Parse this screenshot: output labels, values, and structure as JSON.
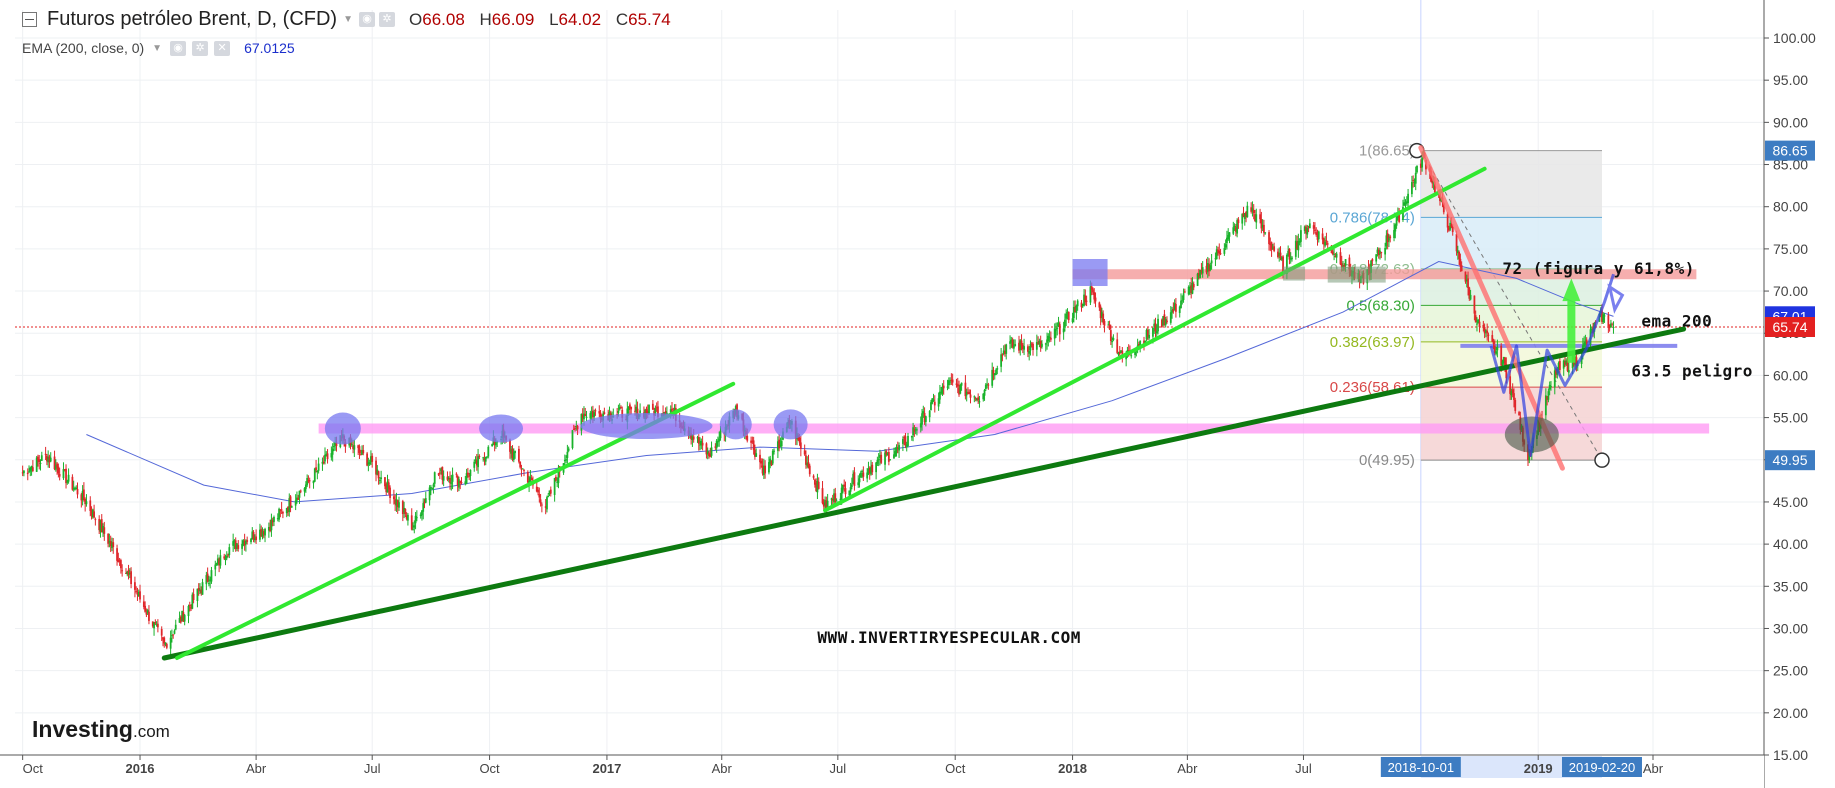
{
  "header": {
    "title": "Futuros petróleo Brent, D, (CFD)",
    "ohlc": [
      {
        "label": "O",
        "value": "66.08"
      },
      {
        "label": "H",
        "value": "66.09"
      },
      {
        "label": "L",
        "value": "64.02"
      },
      {
        "label": "C",
        "value": "65.74"
      }
    ],
    "indicator": "EMA (200, close, 0)",
    "indicator_value": "67.0125"
  },
  "colors": {
    "up_candle": "#19b22b",
    "down_candle": "#e0262a",
    "ema_line": "#5468d8",
    "trend_light": "#30e830",
    "trend_dark": "#0d7a10",
    "support_band": "#ff9cf5",
    "resistance_band": "#f59a9a",
    "current_price_tag": "#e32020",
    "ema_tag": "#1f33e0",
    "fib_tag": "#3d7cc2"
  },
  "chart_data": {
    "type": "candlestick",
    "title": "Futuros petróleo Brent, D, (CFD)",
    "y_axis": {
      "range": [
        15,
        102
      ],
      "ticks": [
        "100.00",
        "95.00",
        "90.00",
        "85.00",
        "80.00",
        "75.00",
        "70.00",
        "65.00",
        "60.00",
        "55.00",
        "50.00",
        "45.00",
        "40.00",
        "35.00",
        "30.00",
        "25.00",
        "20.00",
        "15.00"
      ]
    },
    "x_axis": {
      "range": [
        "2015-10-01",
        "2019-05-15"
      ],
      "ticks": [
        {
          "date": "2015-10-01",
          "label": "Oct"
        },
        {
          "date": "2016-01-01",
          "label": "2016",
          "bold": true
        },
        {
          "date": "2016-04-01",
          "label": "Abr"
        },
        {
          "date": "2016-07-01",
          "label": "Jul"
        },
        {
          "date": "2016-10-01",
          "label": "Oct"
        },
        {
          "date": "2017-01-01",
          "label": "2017",
          "bold": true
        },
        {
          "date": "2017-04-01",
          "label": "Abr"
        },
        {
          "date": "2017-07-01",
          "label": "Jul"
        },
        {
          "date": "2017-10-01",
          "label": "Oct"
        },
        {
          "date": "2018-01-01",
          "label": "2018",
          "bold": true
        },
        {
          "date": "2018-04-01",
          "label": "Abr"
        },
        {
          "date": "2018-07-01",
          "label": "Jul"
        },
        {
          "date": "2019-01-01",
          "label": "2019",
          "bold": true
        },
        {
          "date": "2019-04-01",
          "label": "Abr"
        }
      ],
      "highlight_range": [
        "2018-10-01",
        "2019-02-20"
      ],
      "highlight_labels": [
        {
          "date": "2018-10-01",
          "label": "2018-10-01"
        },
        {
          "date": "2019-02-20",
          "label": "2019-02-20"
        }
      ]
    },
    "price_key_points": [
      {
        "date": "2015-10-01",
        "close": 48.5
      },
      {
        "date": "2015-10-20",
        "close": 50.5
      },
      {
        "date": "2015-11-20",
        "close": 45.0
      },
      {
        "date": "2015-12-20",
        "close": 37.0
      },
      {
        "date": "2016-01-20",
        "close": 28.0
      },
      {
        "date": "2016-02-10",
        "close": 33.0
      },
      {
        "date": "2016-03-10",
        "close": 39.5
      },
      {
        "date": "2016-04-10",
        "close": 42.0
      },
      {
        "date": "2016-05-10",
        "close": 47.0
      },
      {
        "date": "2016-06-08",
        "close": 52.5
      },
      {
        "date": "2016-07-01",
        "close": 49.5
      },
      {
        "date": "2016-08-02",
        "close": 42.0
      },
      {
        "date": "2016-08-20",
        "close": 48.5
      },
      {
        "date": "2016-09-10",
        "close": 47.5
      },
      {
        "date": "2016-10-10",
        "close": 53.0
      },
      {
        "date": "2016-11-14",
        "close": 44.5
      },
      {
        "date": "2016-12-12",
        "close": 55.5
      },
      {
        "date": "2017-01-15",
        "close": 55.5
      },
      {
        "date": "2017-02-20",
        "close": 56.0
      },
      {
        "date": "2017-03-22",
        "close": 50.5
      },
      {
        "date": "2017-04-12",
        "close": 56.0
      },
      {
        "date": "2017-05-05",
        "close": 48.5
      },
      {
        "date": "2017-05-25",
        "close": 54.5
      },
      {
        "date": "2017-06-21",
        "close": 44.5
      },
      {
        "date": "2017-07-20",
        "close": 48.5
      },
      {
        "date": "2017-08-20",
        "close": 51.5
      },
      {
        "date": "2017-09-25",
        "close": 59.0
      },
      {
        "date": "2017-10-20",
        "close": 57.5
      },
      {
        "date": "2017-11-10",
        "close": 63.5
      },
      {
        "date": "2017-12-10",
        "close": 63.5
      },
      {
        "date": "2018-01-15",
        "close": 70.0
      },
      {
        "date": "2018-02-09",
        "close": 62.0
      },
      {
        "date": "2018-03-20",
        "close": 67.5
      },
      {
        "date": "2018-04-20",
        "close": 73.5
      },
      {
        "date": "2018-05-20",
        "close": 80.0
      },
      {
        "date": "2018-06-15",
        "close": 73.0
      },
      {
        "date": "2018-07-05",
        "close": 78.0
      },
      {
        "date": "2018-08-15",
        "close": 71.0
      },
      {
        "date": "2018-09-10",
        "close": 77.5
      },
      {
        "date": "2018-10-03",
        "close": 86.0
      },
      {
        "date": "2018-10-25",
        "close": 77.0
      },
      {
        "date": "2018-11-15",
        "close": 66.0
      },
      {
        "date": "2018-12-05",
        "close": 61.5
      },
      {
        "date": "2018-12-24",
        "close": 50.5
      },
      {
        "date": "2019-01-15",
        "close": 60.5
      },
      {
        "date": "2019-02-01",
        "close": 62.0
      },
      {
        "date": "2019-02-15",
        "close": 66.0
      },
      {
        "date": "2019-02-20",
        "close": 67.0
      },
      {
        "date": "2019-03-01",
        "close": 65.74
      }
    ],
    "ema_200_key_points": [
      {
        "date": "2015-11-20",
        "value": 53.0
      },
      {
        "date": "2016-02-20",
        "value": 47.0
      },
      {
        "date": "2016-05-01",
        "value": 45.0
      },
      {
        "date": "2016-08-01",
        "value": 46.0
      },
      {
        "date": "2016-11-01",
        "value": 48.5
      },
      {
        "date": "2017-02-01",
        "value": 50.5
      },
      {
        "date": "2017-05-01",
        "value": 51.5
      },
      {
        "date": "2017-08-01",
        "value": 51.0
      },
      {
        "date": "2017-11-01",
        "value": 53.0
      },
      {
        "date": "2018-02-01",
        "value": 57.0
      },
      {
        "date": "2018-05-01",
        "value": 62.0
      },
      {
        "date": "2018-08-01",
        "value": 67.5
      },
      {
        "date": "2018-10-15",
        "value": 73.5
      },
      {
        "date": "2018-12-15",
        "value": 71.5
      },
      {
        "date": "2019-02-01",
        "value": 68.5
      },
      {
        "date": "2019-03-01",
        "value": 67.0
      }
    ],
    "fibonacci": {
      "start_date": "2018-10-01",
      "end_date": "2019-02-20",
      "levels": [
        {
          "ratio": "1",
          "value": 86.65,
          "label": "1(86.65)",
          "color": "#999999"
        },
        {
          "ratio": "0.786",
          "value": 78.74,
          "label": "0.786(78.74)",
          "color": "#5aa6d4"
        },
        {
          "ratio": "0.618",
          "value": 72.63,
          "label": "0.618(72.63)",
          "color": "#8fbd8f"
        },
        {
          "ratio": "0.5",
          "value": 68.3,
          "label": "0.5(68.30)",
          "color": "#36a836"
        },
        {
          "ratio": "0.382",
          "value": 63.97,
          "label": "0.382(63.97)",
          "color": "#94b820"
        },
        {
          "ratio": "0.236",
          "value": 58.61,
          "label": "0.236(58.61)",
          "color": "#d84848"
        },
        {
          "ratio": "0",
          "value": 49.95,
          "label": "0(49.95)",
          "color": "#888888"
        }
      ]
    },
    "price_tags": [
      {
        "value": 86.65,
        "label": "86.65",
        "color": "#3d7cc2"
      },
      {
        "value": 67.01,
        "label": "67.01",
        "color": "#1f33e0"
      },
      {
        "value": 65.74,
        "label": "65.74",
        "color": "#e32020"
      },
      {
        "value": 49.95,
        "label": "49.95",
        "color": "#3d7cc2"
      }
    ],
    "current_price": 65.74,
    "annotations": [
      {
        "date": "2018-10-10",
        "value": 72.0,
        "text": "72 (figura y 61,8%)"
      },
      {
        "date": "2019-03-15",
        "value": 65.8,
        "text": "ema 200"
      },
      {
        "date": "2019-03-15",
        "value": 59.9,
        "text": "63.5 peligro"
      },
      {
        "date": "2017-06-15",
        "value": 28.3,
        "text": "WWW.INVERTIRYESPECULAR.COM"
      }
    ],
    "trendlines": [
      {
        "name": "long-term-support",
        "from": {
          "date": "2016-01-20",
          "value": 26.5
        },
        "to": {
          "date": "2019-04-25",
          "value": 65.5
        },
        "color": "#0d7a10"
      },
      {
        "name": "rising-trend-2016",
        "from": {
          "date": "2016-01-30",
          "value": 26.5
        },
        "to": {
          "date": "2017-04-10",
          "value": 59.0
        },
        "color": "#30e830"
      },
      {
        "name": "rising-trend-2017",
        "from": {
          "date": "2017-06-21",
          "value": 44.0
        },
        "to": {
          "date": "2018-11-20",
          "value": 84.5
        },
        "color": "#30e830"
      },
      {
        "name": "falling-trend-2018",
        "from": {
          "date": "2018-10-01",
          "value": 87.0
        },
        "to": {
          "date": "2019-01-20",
          "value": 49.0
        },
        "color": "#ff7070"
      }
    ],
    "horizontal_bands": [
      {
        "name": "support-54",
        "value": 53.7,
        "from": "2016-05-20",
        "to": "2019-05-15",
        "color": "#ff9cf5"
      },
      {
        "name": "resistance-72",
        "value": 72.0,
        "from": "2018-01-01",
        "to": "2019-05-05",
        "color": "#f59a9a"
      },
      {
        "name": "level-63.5",
        "value": 63.5,
        "from": "2018-11-01",
        "to": "2019-04-20",
        "color": "#8080ee"
      }
    ],
    "watermark": "Investing.com",
    "grid": true
  }
}
